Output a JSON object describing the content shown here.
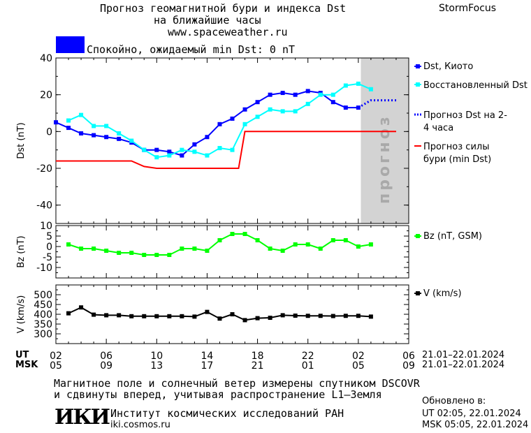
{
  "header": {
    "title_line1": "Прогноз геомагнитной бури и индекса Dst",
    "title_line2": "на ближайшие часы",
    "url": "www.spaceweather.ru",
    "brand": "StormFocus",
    "status_text": "Спокойно, ожидаемый min Dst: 0 nT",
    "status_color": "#0000ff"
  },
  "chart_data": [
    {
      "type": "line",
      "ylabel": "Dst (nT)",
      "ylim": [
        -50,
        40
      ],
      "yticks": [
        40,
        20,
        0,
        -20,
        -40
      ],
      "forecast_label": "прогноз",
      "series": [
        {
          "name": "Dst, Киото",
          "color": "#0000ff",
          "marker": "square",
          "x": [
            0,
            1,
            2,
            3,
            4,
            5,
            6,
            7,
            8,
            9,
            10,
            11,
            12,
            13,
            14,
            15,
            16,
            17,
            18,
            19,
            20,
            21,
            22,
            23,
            24
          ],
          "values": [
            5,
            2,
            -1,
            -2,
            -3,
            -4,
            -6,
            -10,
            -10,
            -11,
            -13,
            -7,
            -3,
            4,
            7,
            12,
            16,
            20,
            21,
            20,
            22,
            21,
            16,
            13,
            13
          ]
        },
        {
          "name": "Восстановленный Dst",
          "color": "#00ffff",
          "marker": "square",
          "x": [
            1,
            2,
            3,
            4,
            5,
            6,
            7,
            8,
            9,
            10,
            11,
            12,
            13,
            14,
            15,
            16,
            17,
            18,
            19,
            20,
            21,
            22,
            23,
            24,
            25
          ],
          "values": [
            6,
            9,
            3,
            3,
            -1,
            -5,
            -10,
            -14,
            -13,
            -10,
            -11,
            -13,
            -9,
            -10,
            4,
            8,
            12,
            11,
            11,
            15,
            20,
            20,
            25,
            26,
            23
          ]
        },
        {
          "name": "Прогноз Dst на 2-4 часа",
          "color": "#0000ff",
          "style": "dotted",
          "x": [
            24,
            25,
            26,
            27
          ],
          "values": [
            13,
            17,
            17,
            17
          ]
        },
        {
          "name": "Прогноз силы бури (min Dst)",
          "color": "#ff0000",
          "style": "step",
          "x": [
            0,
            5,
            6,
            7,
            8,
            9,
            14,
            14.5,
            15,
            27
          ],
          "values": [
            -16,
            -16,
            -16,
            -19,
            -20,
            -20,
            -20,
            -20,
            0,
            0
          ]
        }
      ]
    },
    {
      "type": "line",
      "ylabel": "Bz (nT)",
      "ylim": [
        -15,
        10
      ],
      "yticks": [
        10,
        5,
        0,
        -5,
        -10
      ],
      "series": [
        {
          "name": "Bz (nT, GSM)",
          "color": "#00ff00",
          "marker": "square",
          "x": [
            1,
            2,
            3,
            4,
            5,
            6,
            7,
            8,
            9,
            10,
            11,
            12,
            13,
            14,
            15,
            16,
            17,
            18,
            19,
            20,
            21,
            22,
            23,
            24,
            25
          ],
          "values": [
            1,
            -1,
            -1,
            -2,
            -3,
            -3,
            -4,
            -4,
            -4,
            -1,
            -1,
            -2,
            3,
            6,
            6,
            3,
            -1,
            -2,
            1,
            1,
            -1,
            3,
            3,
            0,
            1
          ]
        }
      ]
    },
    {
      "type": "line",
      "ylabel": "V (km/s)",
      "ylim": [
        250,
        550
      ],
      "yticks": [
        500,
        450,
        400,
        350,
        300
      ],
      "series": [
        {
          "name": "V (km/s)",
          "color": "#000000",
          "marker": "square",
          "x": [
            1,
            2,
            3,
            4,
            5,
            6,
            7,
            8,
            9,
            10,
            11,
            12,
            13,
            14,
            15,
            16,
            17,
            18,
            19,
            20,
            21,
            22,
            23,
            24,
            25
          ],
          "values": [
            405,
            435,
            398,
            395,
            395,
            390,
            390,
            390,
            390,
            390,
            388,
            412,
            378,
            400,
            370,
            380,
            382,
            395,
            393,
            392,
            392,
            391,
            392,
            392,
            388
          ]
        }
      ]
    }
  ],
  "x_axis": {
    "ut_label": "UT",
    "msk_label": "MSK",
    "ut_ticks": [
      "02",
      "06",
      "10",
      "14",
      "18",
      "22",
      "02",
      "06"
    ],
    "msk_ticks": [
      "05",
      "09",
      "13",
      "17",
      "21",
      "01",
      "05",
      "09"
    ],
    "range_ut": "21.01–22.01.2024",
    "range_msk": "21.01–22.01.2024"
  },
  "footer": {
    "note_line1": "Магнитное поле и солнечный ветер измерены спутником DSCOVR",
    "note_line2": "и сдвинуты вперед, учитывая распространение L1–Земля",
    "logo_text": "ИКИ",
    "institute": "Институт космических исследований РАН",
    "site": "iki.cosmos.ru",
    "updated_label": "Обновлено в:",
    "updated_ut": "UT  02:05, 22.01.2024",
    "updated_msk": "MSK 05:05, 22.01.2024"
  }
}
